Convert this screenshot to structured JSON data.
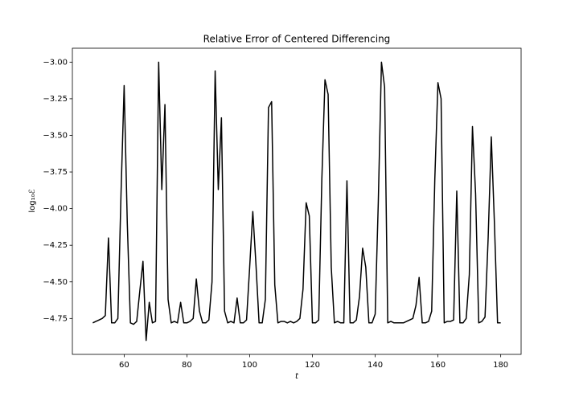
{
  "chart_data": {
    "type": "line",
    "title": "Relative Error of Centered Differencing",
    "xlabel": "t",
    "ylabel": "log₁₀ℰ",
    "color": "#000000",
    "x": [
      50,
      51,
      52,
      53,
      54,
      55,
      56,
      57,
      58,
      59,
      60,
      61,
      62,
      63,
      64,
      65,
      66,
      67,
      68,
      69,
      70,
      71,
      72,
      73,
      74,
      75,
      76,
      77,
      78,
      79,
      80,
      81,
      82,
      83,
      84,
      85,
      86,
      87,
      88,
      89,
      90,
      91,
      92,
      93,
      94,
      95,
      96,
      97,
      98,
      99,
      100,
      101,
      102,
      103,
      104,
      105,
      106,
      107,
      108,
      109,
      110,
      111,
      112,
      113,
      114,
      115,
      116,
      117,
      118,
      119,
      120,
      121,
      122,
      123,
      124,
      125,
      126,
      127,
      128,
      129,
      130,
      131,
      132,
      133,
      134,
      135,
      136,
      137,
      138,
      139,
      140,
      141,
      142,
      143,
      144,
      145,
      146,
      147,
      148,
      149,
      150,
      151,
      152,
      153,
      154,
      155,
      156,
      157,
      158,
      159,
      160,
      161,
      162,
      163,
      164,
      165,
      166,
      167,
      168,
      169,
      170,
      171,
      172,
      173,
      174,
      175,
      176,
      177,
      178,
      179,
      180
    ],
    "values": [
      -4.78,
      -4.77,
      -4.76,
      -4.75,
      -4.73,
      -4.2,
      -4.78,
      -4.78,
      -4.75,
      -3.9,
      -3.16,
      -4.1,
      -4.78,
      -4.79,
      -4.77,
      -4.56,
      -4.36,
      -4.9,
      -4.64,
      -4.78,
      -4.77,
      -3.0,
      -3.87,
      -3.29,
      -4.62,
      -4.78,
      -4.77,
      -4.78,
      -4.64,
      -4.78,
      -4.78,
      -4.77,
      -4.75,
      -4.48,
      -4.7,
      -4.78,
      -4.78,
      -4.76,
      -4.5,
      -3.06,
      -3.87,
      -3.38,
      -4.7,
      -4.78,
      -4.77,
      -4.78,
      -4.61,
      -4.78,
      -4.78,
      -4.76,
      -4.4,
      -4.02,
      -4.38,
      -4.78,
      -4.78,
      -4.62,
      -3.31,
      -3.27,
      -4.52,
      -4.78,
      -4.77,
      -4.77,
      -4.78,
      -4.77,
      -4.78,
      -4.77,
      -4.75,
      -4.55,
      -3.96,
      -4.05,
      -4.78,
      -4.78,
      -4.76,
      -3.8,
      -3.12,
      -3.22,
      -4.4,
      -4.78,
      -4.77,
      -4.78,
      -4.78,
      -3.81,
      -4.78,
      -4.78,
      -4.76,
      -4.6,
      -4.27,
      -4.4,
      -4.78,
      -4.78,
      -4.72,
      -3.95,
      -3.0,
      -3.17,
      -4.78,
      -4.77,
      -4.78,
      -4.78,
      -4.78,
      -4.78,
      -4.77,
      -4.76,
      -4.75,
      -4.66,
      -4.47,
      -4.78,
      -4.78,
      -4.77,
      -4.7,
      -3.8,
      -3.14,
      -3.25,
      -4.78,
      -4.77,
      -4.77,
      -4.76,
      -3.88,
      -4.78,
      -4.78,
      -4.75,
      -4.45,
      -3.44,
      -3.9,
      -4.78,
      -4.77,
      -4.74,
      -4.2,
      -3.51,
      -4.1,
      -4.78,
      -4.78
    ],
    "xlim": [
      43.5,
      186.5
    ],
    "xticks": [
      60,
      80,
      100,
      120,
      140,
      160,
      180
    ],
    "ylim": [
      -4.995,
      -2.905
    ],
    "yticks": [
      {
        "value": -4.75,
        "label": "−4.75"
      },
      {
        "value": -4.5,
        "label": "−4.50"
      },
      {
        "value": -4.25,
        "label": "−4.25"
      },
      {
        "value": -4.0,
        "label": "−4.00"
      },
      {
        "value": -3.75,
        "label": "−3.75"
      },
      {
        "value": -3.5,
        "label": "−3.50"
      },
      {
        "value": -3.25,
        "label": "−3.25"
      },
      {
        "value": -3.0,
        "label": "−3.00"
      }
    ]
  }
}
